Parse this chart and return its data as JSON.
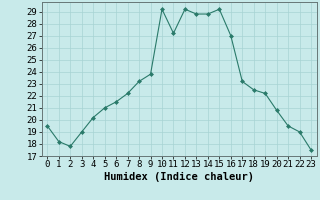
{
  "x": [
    0,
    1,
    2,
    3,
    4,
    5,
    6,
    7,
    8,
    9,
    10,
    11,
    12,
    13,
    14,
    15,
    16,
    17,
    18,
    19,
    20,
    21,
    22,
    23
  ],
  "y": [
    19.5,
    18.2,
    17.8,
    19.0,
    20.2,
    21.0,
    21.5,
    22.2,
    23.2,
    23.8,
    29.2,
    27.2,
    29.2,
    28.8,
    28.8,
    29.2,
    27.0,
    23.2,
    22.5,
    22.2,
    20.8,
    19.5,
    19.0,
    17.5
  ],
  "xlabel": "Humidex (Indice chaleur)",
  "ylabel": "",
  "xlim": [
    -0.5,
    23.5
  ],
  "ylim": [
    17,
    29.8
  ],
  "yticks": [
    17,
    18,
    19,
    20,
    21,
    22,
    23,
    24,
    25,
    26,
    27,
    28,
    29
  ],
  "xticks": [
    0,
    1,
    2,
    3,
    4,
    5,
    6,
    7,
    8,
    9,
    10,
    11,
    12,
    13,
    14,
    15,
    16,
    17,
    18,
    19,
    20,
    21,
    22,
    23
  ],
  "line_color": "#2a7a6a",
  "marker": "D",
  "marker_size": 2.0,
  "bg_color": "#c8eaea",
  "grid_color": "#a8d4d4",
  "xlabel_fontsize": 7.5,
  "tick_fontsize": 6.5
}
